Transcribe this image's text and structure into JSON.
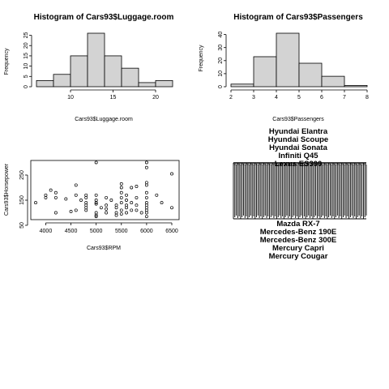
{
  "chart_data": [
    {
      "type": "bar",
      "title": "Histogram of Cars93$Luggage.room",
      "xlabel": "Cars93$Luggage.room",
      "ylabel": "Frequency",
      "breaks": [
        6,
        8,
        10,
        12,
        14,
        16,
        18,
        20,
        22
      ],
      "values": [
        3,
        6,
        15,
        26,
        15,
        9,
        2,
        3
      ],
      "xticks": [
        10,
        15,
        20
      ],
      "yticks": [
        0,
        5,
        10,
        15,
        20,
        25
      ],
      "xlim": [
        6,
        22
      ],
      "ylim": [
        0,
        26
      ],
      "bar_color": "#d3d3d3"
    },
    {
      "type": "bar",
      "title": "Histogram of Cars93$Passengers",
      "xlabel": "Cars93$Passengers",
      "ylabel": "Frequency",
      "breaks": [
        2,
        3,
        4,
        5,
        6,
        7,
        8
      ],
      "values": [
        2,
        23,
        41,
        18,
        8,
        1
      ],
      "xticks": [
        2,
        3,
        4,
        5,
        6,
        7,
        8
      ],
      "yticks": [
        0,
        10,
        20,
        30,
        40
      ],
      "xlim": [
        2,
        8
      ],
      "ylim": [
        0,
        41
      ],
      "bar_color": "#d3d3d3"
    },
    {
      "type": "scatter",
      "xlabel": "Cars93$RPM",
      "ylabel": "Cars93$Horsepower",
      "xticks": [
        4000,
        4500,
        5000,
        5500,
        6000,
        6500
      ],
      "yticks": [
        50,
        150,
        250
      ],
      "xlim": [
        3700,
        6500
      ],
      "ylim": [
        55,
        300
      ],
      "points": [
        [
          3800,
          140
        ],
        [
          4000,
          170
        ],
        [
          4000,
          160
        ],
        [
          4100,
          190
        ],
        [
          4200,
          180
        ],
        [
          4200,
          160
        ],
        [
          4200,
          100
        ],
        [
          4400,
          155
        ],
        [
          4500,
          105
        ],
        [
          4600,
          170
        ],
        [
          4600,
          110
        ],
        [
          4600,
          210
        ],
        [
          4700,
          150
        ],
        [
          4800,
          120
        ],
        [
          4800,
          110
        ],
        [
          4800,
          140
        ],
        [
          4800,
          170
        ],
        [
          4800,
          160
        ],
        [
          4800,
          130
        ],
        [
          5000,
          140
        ],
        [
          5000,
          300
        ],
        [
          5000,
          100
        ],
        [
          5000,
          90
        ],
        [
          5000,
          85
        ],
        [
          5000,
          150
        ],
        [
          5000,
          135
        ],
        [
          5000,
          170
        ],
        [
          5100,
          120
        ],
        [
          5200,
          160
        ],
        [
          5200,
          115
        ],
        [
          5200,
          100
        ],
        [
          5200,
          130
        ],
        [
          5300,
          150
        ],
        [
          5400,
          120
        ],
        [
          5400,
          130
        ],
        [
          5400,
          100
        ],
        [
          5400,
          90
        ],
        [
          5500,
          160
        ],
        [
          5500,
          140
        ],
        [
          5500,
          110
        ],
        [
          5500,
          200
        ],
        [
          5500,
          215
        ],
        [
          5500,
          180
        ],
        [
          5500,
          95
        ],
        [
          5600,
          150
        ],
        [
          5600,
          120
        ],
        [
          5600,
          130
        ],
        [
          5600,
          170
        ],
        [
          5600,
          100
        ],
        [
          5700,
          110
        ],
        [
          5700,
          200
        ],
        [
          5700,
          140
        ],
        [
          5800,
          160
        ],
        [
          5800,
          205
        ],
        [
          5800,
          110
        ],
        [
          5800,
          130
        ],
        [
          5900,
          100
        ],
        [
          6000,
          180
        ],
        [
          6000,
          100
        ],
        [
          6000,
          130
        ],
        [
          6000,
          160
        ],
        [
          6000,
          280
        ],
        [
          6000,
          300
        ],
        [
          6000,
          110
        ],
        [
          6000,
          140
        ],
        [
          6000,
          120
        ],
        [
          6000,
          220
        ],
        [
          6000,
          210
        ],
        [
          6000,
          85
        ],
        [
          6200,
          170
        ],
        [
          6300,
          140
        ],
        [
          6500,
          255
        ],
        [
          6500,
          120
        ]
      ]
    },
    {
      "type": "dendrogram",
      "labels_top": [
        "Hyundai Elantra",
        "Hyundai Scoupe",
        "Hyundai Sonata",
        "Infiniti Q45",
        "Lexus ES300"
      ],
      "labels_bottom": [
        "Mazda RX-7",
        "Mercedes-Benz 190E",
        "Mercedes-Benz 300E",
        "Mercury Capri",
        "Mercury Cougar"
      ]
    }
  ]
}
